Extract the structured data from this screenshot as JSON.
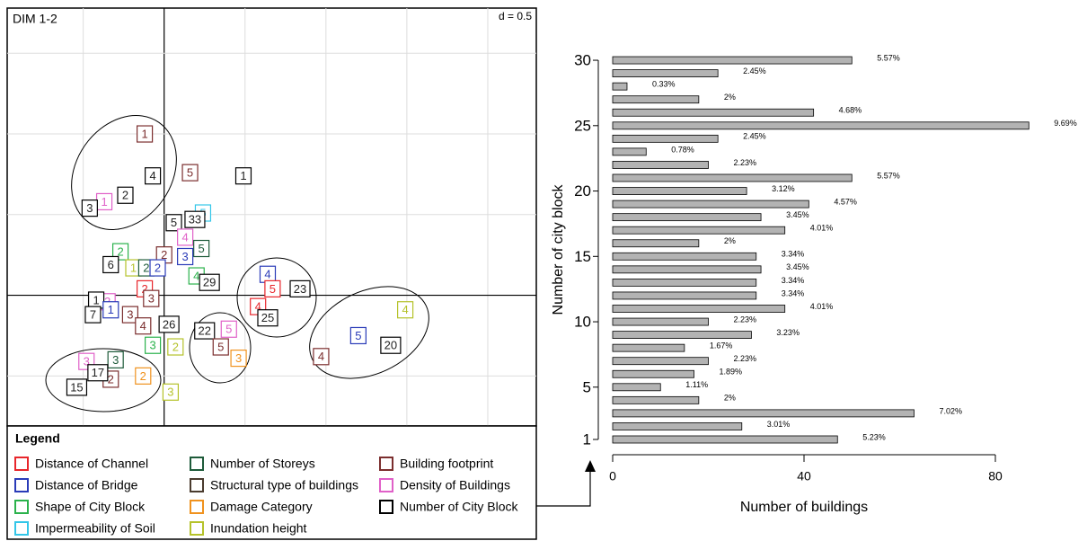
{
  "chart_data": [
    {
      "type": "scatter",
      "title": "DIM 1-2",
      "annotation": "d = 0.5",
      "xlim": [
        -0.97,
        2.3
      ],
      "ylim": [
        -0.81,
        1.78
      ],
      "xticks": [
        -0.5,
        0,
        0.5,
        1,
        1.5,
        2
      ],
      "yticks": [
        -0.5,
        0,
        0.5,
        1,
        1.5
      ],
      "grid": true,
      "legend_title": "Legend",
      "groups": [
        {
          "name": "Distance of Channel",
          "color": "#e8262b"
        },
        {
          "name": "Distance of Bridge",
          "color": "#2a3bb8"
        },
        {
          "name": "Shape of City Block",
          "color": "#2bb24c"
        },
        {
          "name": "Impermeability of Soil",
          "color": "#33c6e8"
        },
        {
          "name": "Number of Storeys",
          "color": "#1e5b3a"
        },
        {
          "name": "Structural type of buildings",
          "color": "#4a3b2e"
        },
        {
          "name": "Damage Category",
          "color": "#f0921e"
        },
        {
          "name": "Inundation height",
          "color": "#b5c22a"
        },
        {
          "name": "Building footprint",
          "color": "#7b2e2e"
        },
        {
          "name": "Density of Buildings",
          "color": "#e060c8"
        },
        {
          "name": "Number of City Block",
          "color": "#000000"
        }
      ],
      "points": [
        {
          "label": "1",
          "group": 8,
          "x": -0.12,
          "y": 1.0
        },
        {
          "label": "4",
          "group": 10,
          "x": -0.07,
          "y": 0.74
        },
        {
          "label": "5",
          "group": 8,
          "x": 0.16,
          "y": 0.76
        },
        {
          "label": "1",
          "group": 10,
          "x": 0.49,
          "y": 0.74
        },
        {
          "label": "2",
          "group": 10,
          "x": -0.24,
          "y": 0.62
        },
        {
          "label": "1",
          "group": 9,
          "x": -0.37,
          "y": 0.58
        },
        {
          "label": "3",
          "group": 10,
          "x": -0.46,
          "y": 0.54
        },
        {
          "label": "5",
          "group": 3,
          "x": 0.24,
          "y": 0.51
        },
        {
          "label": "33",
          "group": 10,
          "x": 0.19,
          "y": 0.47
        },
        {
          "label": "5",
          "group": 10,
          "x": 0.06,
          "y": 0.45
        },
        {
          "label": "4",
          "group": 9,
          "x": 0.13,
          "y": 0.36
        },
        {
          "label": "2",
          "group": 2,
          "x": -0.27,
          "y": 0.27
        },
        {
          "label": "5",
          "group": 4,
          "x": 0.23,
          "y": 0.29
        },
        {
          "label": "2",
          "group": 8,
          "x": 0,
          "y": 0.25
        },
        {
          "label": "3",
          "group": 1,
          "x": 0.13,
          "y": 0.24
        },
        {
          "label": "6",
          "group": 10,
          "x": -0.33,
          "y": 0.19
        },
        {
          "label": "1",
          "group": 7,
          "x": -0.19,
          "y": 0.17
        },
        {
          "label": "2",
          "group": 4,
          "x": -0.11,
          "y": 0.17
        },
        {
          "label": "2",
          "group": 1,
          "x": -0.04,
          "y": 0.17
        },
        {
          "label": "4",
          "group": 2,
          "x": 0.2,
          "y": 0.12
        },
        {
          "label": "29",
          "group": 10,
          "x": 0.28,
          "y": 0.08
        },
        {
          "label": "4",
          "group": 1,
          "x": 0.64,
          "y": 0.13
        },
        {
          "label": "5",
          "group": 0,
          "x": 0.67,
          "y": 0.04
        },
        {
          "label": "23",
          "group": 10,
          "x": 0.84,
          "y": 0.04
        },
        {
          "label": "4",
          "group": 0,
          "x": 0.58,
          "y": -0.07
        },
        {
          "label": "25",
          "group": 10,
          "x": 0.64,
          "y": -0.14
        },
        {
          "label": "2",
          "group": 0,
          "x": -0.12,
          "y": 0.04
        },
        {
          "label": "3",
          "group": 8,
          "x": -0.08,
          "y": -0.02
        },
        {
          "label": "2",
          "group": 9,
          "x": -0.35,
          "y": -0.04
        },
        {
          "label": "1",
          "group": 10,
          "x": -0.42,
          "y": -0.03
        },
        {
          "label": "7",
          "group": 10,
          "x": -0.44,
          "y": -0.12
        },
        {
          "label": "1",
          "group": 1,
          "x": -0.33,
          "y": -0.09
        },
        {
          "label": "3",
          "group": 8,
          "x": -0.21,
          "y": -0.12
        },
        {
          "label": "4",
          "group": 8,
          "x": -0.13,
          "y": -0.19
        },
        {
          "label": "26",
          "group": 10,
          "x": 0.03,
          "y": -0.18
        },
        {
          "label": "22",
          "group": 10,
          "x": 0.25,
          "y": -0.22
        },
        {
          "label": "5",
          "group": 9,
          "x": 0.4,
          "y": -0.21
        },
        {
          "label": "3",
          "group": 2,
          "x": -0.07,
          "y": -0.31
        },
        {
          "label": "2",
          "group": 7,
          "x": 0.07,
          "y": -0.32
        },
        {
          "label": "5",
          "group": 8,
          "x": 0.35,
          "y": -0.32
        },
        {
          "label": "3",
          "group": 6,
          "x": 0.46,
          "y": -0.39
        },
        {
          "label": "5",
          "group": 1,
          "x": 1.2,
          "y": -0.25
        },
        {
          "label": "20",
          "group": 10,
          "x": 1.4,
          "y": -0.31
        },
        {
          "label": "4",
          "group": 7,
          "x": 1.49,
          "y": -0.09
        },
        {
          "label": "4",
          "group": 8,
          "x": 0.97,
          "y": -0.38
        },
        {
          "label": "3",
          "group": 9,
          "x": -0.48,
          "y": -0.41
        },
        {
          "label": "3",
          "group": 4,
          "x": -0.3,
          "y": -0.4
        },
        {
          "label": "2",
          "group": 8,
          "x": -0.33,
          "y": -0.52
        },
        {
          "label": "2",
          "group": 6,
          "x": -0.13,
          "y": -0.5
        },
        {
          "label": "17",
          "group": 10,
          "x": -0.41,
          "y": -0.48
        },
        {
          "label": "15",
          "group": 10,
          "x": -0.54,
          "y": -0.57
        },
        {
          "label": "3",
          "group": 7,
          "x": 0.04,
          "y": -0.6
        }
      ]
    },
    {
      "type": "bar",
      "orientation": "horizontal",
      "color": "#b3b3b3",
      "xlabel": "Number of buildings",
      "ylabel": "Number of city block",
      "xlim": [
        0,
        80
      ],
      "xticks": [
        0,
        40,
        80
      ],
      "categories": [
        1,
        null,
        null,
        null,
        5,
        null,
        null,
        null,
        null,
        10,
        null,
        null,
        null,
        null,
        15,
        null,
        null,
        null,
        null,
        20,
        null,
        null,
        null,
        null,
        25,
        null,
        null,
        null,
        null,
        30
      ],
      "values": [
        47,
        27,
        63,
        18,
        10,
        17,
        20,
        15,
        29,
        20,
        36,
        30,
        30,
        31,
        30,
        18,
        36,
        31,
        41,
        28,
        50,
        20,
        7,
        22,
        87,
        42,
        18,
        3,
        22,
        50
      ],
      "percent_labels": [
        "5.23%",
        "3.01%",
        "7.02%",
        "2%",
        "1.11%",
        "1.89%",
        "2.23%",
        "1.67%",
        "3.23%",
        "2.23%",
        "4.01%",
        "3.34%",
        "3.34%",
        "3.45%",
        "3.34%",
        "2%",
        "4.01%",
        "3.45%",
        "4.57%",
        "3.12%",
        "5.57%",
        "2.23%",
        "0.78%",
        "2.45%",
        "9.69%",
        "4.68%",
        "2%",
        "0.33%",
        "2.45%",
        "5.57%"
      ]
    }
  ]
}
